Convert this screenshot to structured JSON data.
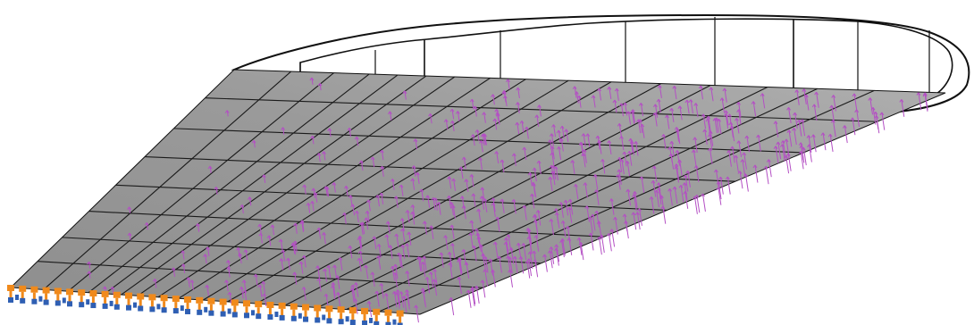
{
  "figure": {
    "description_visible_text": "",
    "colors": {
      "background": "#ffffff",
      "surface_fill": "#959595",
      "surface_fill_light": "#a3a3a3",
      "mesh_line": "#1a1a1a",
      "airfoil_outline": "#111111",
      "load_arrow": "#b44fc4",
      "constraint_orange": "#f08a1c",
      "constraint_blue": "#2f5fb3"
    },
    "legend": []
  }
}
